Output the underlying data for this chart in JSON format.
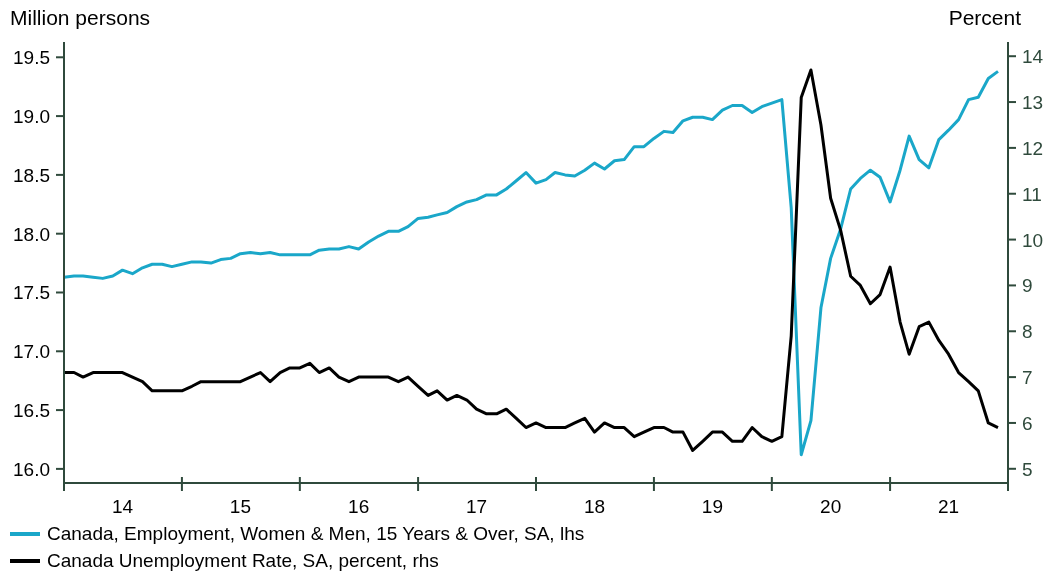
{
  "chart_data": {
    "type": "line",
    "ylabel": "Million persons",
    "y2label": "Percent",
    "x": [
      "2014-01",
      "2014-02",
      "2014-03",
      "2014-04",
      "2014-05",
      "2014-06",
      "2014-07",
      "2014-08",
      "2014-09",
      "2014-10",
      "2014-11",
      "2014-12",
      "2015-01",
      "2015-02",
      "2015-03",
      "2015-04",
      "2015-05",
      "2015-06",
      "2015-07",
      "2015-08",
      "2015-09",
      "2015-10",
      "2015-11",
      "2015-12",
      "2016-01",
      "2016-02",
      "2016-03",
      "2016-04",
      "2016-05",
      "2016-06",
      "2016-07",
      "2016-08",
      "2016-09",
      "2016-10",
      "2016-11",
      "2016-12",
      "2017-01",
      "2017-02",
      "2017-03",
      "2017-04",
      "2017-05",
      "2017-06",
      "2017-07",
      "2017-08",
      "2017-09",
      "2017-10",
      "2017-11",
      "2017-12",
      "2018-01",
      "2018-02",
      "2018-03",
      "2018-04",
      "2018-05",
      "2018-06",
      "2018-07",
      "2018-08",
      "2018-09",
      "2018-10",
      "2018-11",
      "2018-12",
      "2019-01",
      "2019-02",
      "2019-03",
      "2019-04",
      "2019-05",
      "2019-06",
      "2019-07",
      "2019-08",
      "2019-09",
      "2019-10",
      "2019-11",
      "2019-12",
      "2020-01",
      "2020-02",
      "2020-03",
      "2020-04",
      "2020-05",
      "2020-06",
      "2020-07",
      "2020-08",
      "2020-09",
      "2020-10",
      "2020-11",
      "2020-12",
      "2021-01",
      "2021-02",
      "2021-03",
      "2021-04",
      "2021-05",
      "2021-06",
      "2021-07",
      "2021-08",
      "2021-09",
      "2021-10",
      "2021-11",
      "2021-12"
    ],
    "series": [
      {
        "name": "Canada, Employment, Women & Men, 15 Years & Over, SA, lhs",
        "color": "#1aa7c9",
        "values": [
          17.63,
          17.64,
          17.64,
          17.63,
          17.62,
          17.64,
          17.69,
          17.66,
          17.71,
          17.74,
          17.74,
          17.72,
          17.74,
          17.76,
          17.76,
          17.75,
          17.78,
          17.79,
          17.83,
          17.84,
          17.83,
          17.84,
          17.82,
          17.82,
          17.82,
          17.82,
          17.86,
          17.87,
          17.87,
          17.89,
          17.87,
          17.93,
          17.98,
          18.02,
          18.02,
          18.06,
          18.13,
          18.14,
          18.16,
          18.18,
          18.23,
          18.27,
          18.29,
          18.33,
          18.33,
          18.38,
          18.45,
          18.52,
          18.43,
          18.46,
          18.52,
          18.5,
          18.49,
          18.54,
          18.6,
          18.55,
          18.62,
          18.63,
          18.74,
          18.74,
          18.81,
          18.87,
          18.86,
          18.96,
          18.99,
          18.99,
          18.97,
          19.05,
          19.09,
          19.09,
          19.03,
          19.08,
          19.11,
          19.14,
          18.22,
          16.12,
          16.41,
          17.37,
          17.79,
          18.04,
          18.38,
          18.47,
          18.54,
          18.48,
          18.27,
          18.54,
          18.83,
          18.63,
          18.56,
          18.8,
          18.88,
          18.97,
          19.14,
          19.16,
          19.32,
          19.38
        ]
      },
      {
        "name": "Canada Unemployment Rate, SA, percent, rhs",
        "color": "#000000",
        "axis": "y2",
        "values": [
          7.1,
          7.1,
          7.0,
          7.1,
          7.1,
          7.1,
          7.1,
          7.0,
          6.9,
          6.7,
          6.7,
          6.7,
          6.7,
          6.8,
          6.9,
          6.9,
          6.9,
          6.9,
          6.9,
          7.0,
          7.1,
          6.9,
          7.1,
          7.2,
          7.2,
          7.3,
          7.1,
          7.2,
          7.0,
          6.9,
          7.0,
          7.0,
          7.0,
          7.0,
          6.9,
          7.0,
          6.8,
          6.6,
          6.7,
          6.5,
          6.6,
          6.5,
          6.3,
          6.2,
          6.2,
          6.3,
          6.1,
          5.9,
          6.0,
          5.9,
          5.9,
          5.9,
          6.0,
          6.1,
          5.8,
          6.0,
          5.9,
          5.9,
          5.7,
          5.8,
          5.9,
          5.9,
          5.8,
          5.8,
          5.4,
          5.6,
          5.8,
          5.8,
          5.6,
          5.6,
          5.9,
          5.7,
          5.6,
          5.7,
          7.9,
          13.1,
          13.7,
          12.5,
          10.9,
          10.2,
          9.2,
          9.0,
          8.6,
          8.8,
          9.4,
          8.2,
          7.5,
          8.1,
          8.2,
          7.8,
          7.5,
          7.1,
          6.9,
          6.7,
          6.0,
          5.9
        ]
      }
    ],
    "xlim": [
      "2014-01",
      "2022-01"
    ],
    "xticks": [
      {
        "value": "2014-01",
        "label": null
      },
      {
        "value": "2014-07",
        "label": "14"
      },
      {
        "value": "2015-01",
        "label": null
      },
      {
        "value": "2015-07",
        "label": "15"
      },
      {
        "value": "2016-01",
        "label": null
      },
      {
        "value": "2016-07",
        "label": "16"
      },
      {
        "value": "2017-01",
        "label": null
      },
      {
        "value": "2017-07",
        "label": "17"
      },
      {
        "value": "2018-01",
        "label": null
      },
      {
        "value": "2018-07",
        "label": "18"
      },
      {
        "value": "2019-01",
        "label": null
      },
      {
        "value": "2019-07",
        "label": "19"
      },
      {
        "value": "2020-01",
        "label": null
      },
      {
        "value": "2020-07",
        "label": "20"
      },
      {
        "value": "2021-01",
        "label": null
      },
      {
        "value": "2021-07",
        "label": "21"
      },
      {
        "value": "2022-01",
        "label": null
      }
    ],
    "ylim": [
      15.88,
      19.63
    ],
    "yticks": [
      {
        "value": 16,
        "label": "16.0"
      },
      {
        "value": 16.5,
        "label": "16.5"
      },
      {
        "value": 17,
        "label": "17.0"
      },
      {
        "value": 17.5,
        "label": "17.5"
      },
      {
        "value": 18,
        "label": "18.0"
      },
      {
        "value": 18.5,
        "label": "18.5"
      },
      {
        "value": 19,
        "label": "19.0"
      },
      {
        "value": 19.5,
        "label": "19.5"
      }
    ],
    "y2lim": [
      4.69,
      14.31
    ],
    "y2ticks": [
      5,
      6,
      7,
      8,
      9,
      10,
      11,
      12,
      13,
      14
    ],
    "grid": false,
    "legend": "bottom",
    "marker": "none",
    "line_style": "solid"
  }
}
